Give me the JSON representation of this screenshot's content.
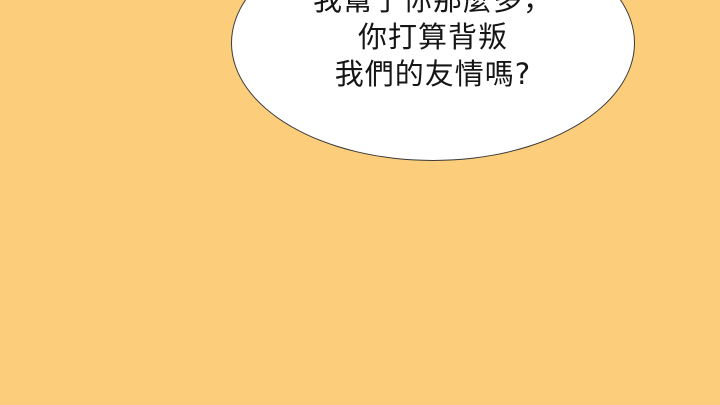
{
  "panel": {
    "background_color": "#fccd7b"
  },
  "speech_bubble": {
    "fill_color": "#ffffff",
    "outline_color": "#3a3a3a",
    "lines": [
      "我幫了你那麼多，",
      "你打算背叛",
      "我們的友情嗎?"
    ]
  }
}
